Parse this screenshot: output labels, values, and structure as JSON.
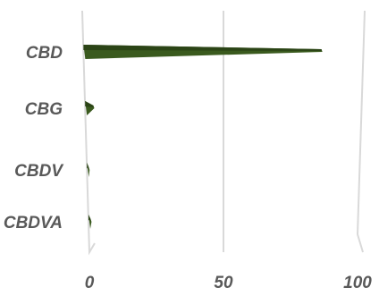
{
  "chart_data": {
    "type": "bar",
    "orientation": "horizontal",
    "title": "",
    "xlabel": "",
    "ylabel": "",
    "categories": [
      "CBD",
      "CBG",
      "CBDV",
      "CBDVA"
    ],
    "values": [
      85,
      3,
      0.5,
      0.8
    ],
    "xlim": [
      0,
      100
    ],
    "xticks": [
      "0",
      "50",
      "100"
    ],
    "grid": true,
    "legend": "none",
    "bar_color": "#3a5a1e",
    "bar_highlight": "#2b4416"
  }
}
